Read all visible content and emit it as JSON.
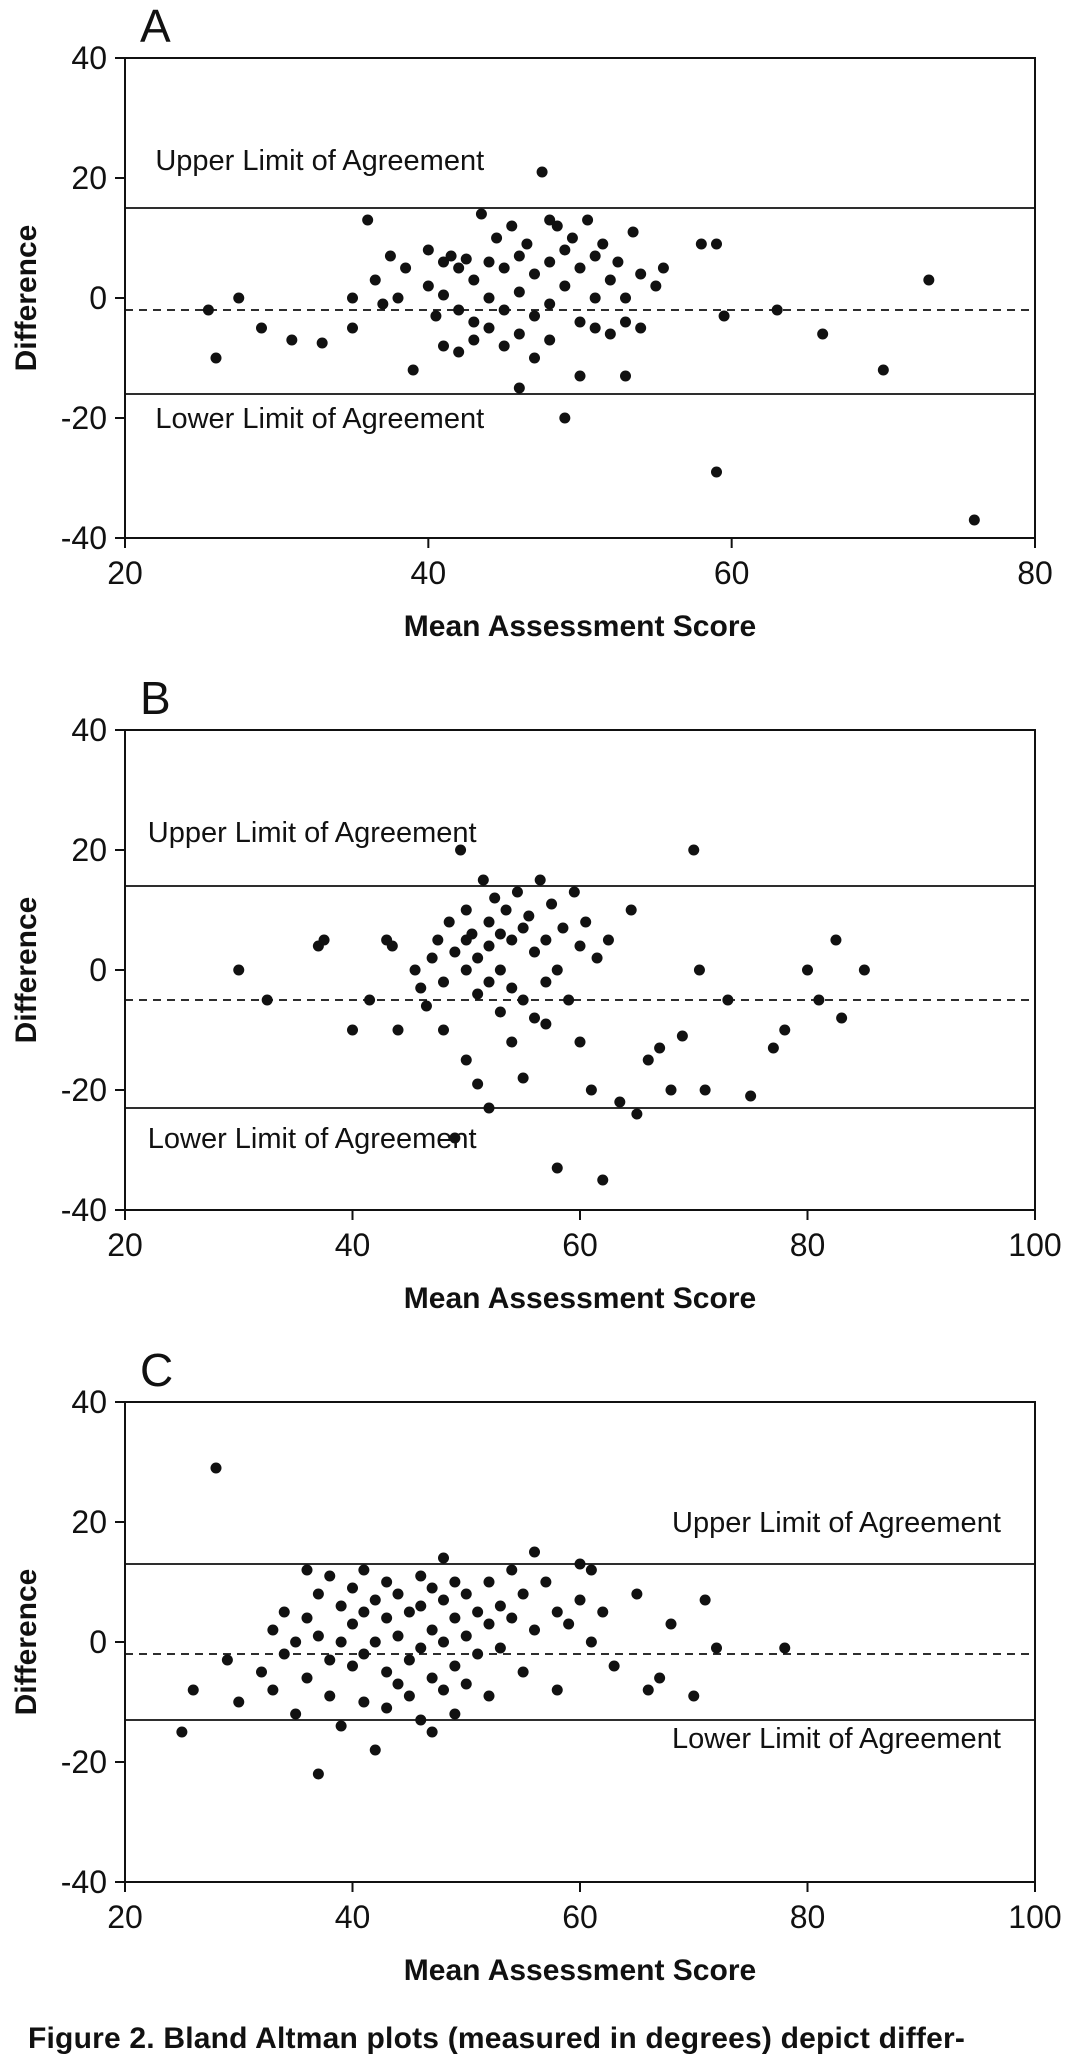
{
  "figure": {
    "caption": "Figure 2. Bland Altman plots (measured in degrees) depict differ-"
  },
  "chart_data": [
    {
      "type": "scatter",
      "panel": "A",
      "title": "",
      "xlabel": "Mean Assessment Score",
      "ylabel": "Difference",
      "xlim": [
        20,
        80
      ],
      "ylim": [
        -40,
        40
      ],
      "xticks": [
        20,
        40,
        60,
        80
      ],
      "yticks": [
        40,
        20,
        0,
        -20,
        -40
      ],
      "grid": false,
      "marker_color": "#111111",
      "lines": {
        "upper_limit": 15,
        "mean": -2,
        "lower_limit": -16
      },
      "annotations": [
        {
          "text": "Upper Limit of Agreement",
          "x": 22,
          "y": 23,
          "anchor": "start"
        },
        {
          "text": "Lower Limit of Agreement",
          "x": 22,
          "y": -20,
          "anchor": "start"
        }
      ],
      "points": [
        [
          26,
          -10
        ],
        [
          27.5,
          0
        ],
        [
          25.5,
          -2
        ],
        [
          29,
          -5
        ],
        [
          31,
          -7
        ],
        [
          33,
          -7.5
        ],
        [
          35,
          0
        ],
        [
          35,
          -5
        ],
        [
          36,
          13
        ],
        [
          36.5,
          3
        ],
        [
          37,
          -1
        ],
        [
          37.5,
          7
        ],
        [
          38,
          0
        ],
        [
          38.5,
          5
        ],
        [
          39,
          -12
        ],
        [
          40,
          8
        ],
        [
          40,
          2
        ],
        [
          40.5,
          -3
        ],
        [
          41,
          6
        ],
        [
          41,
          0.5
        ],
        [
          41,
          -8
        ],
        [
          41.5,
          7
        ],
        [
          42,
          5
        ],
        [
          42,
          -2
        ],
        [
          42,
          -9
        ],
        [
          42.5,
          6.5
        ],
        [
          43,
          3
        ],
        [
          43,
          -4
        ],
        [
          43,
          -7
        ],
        [
          43.5,
          14
        ],
        [
          44,
          6
        ],
        [
          44,
          0
        ],
        [
          44,
          -5
        ],
        [
          44.5,
          10
        ],
        [
          45,
          5
        ],
        [
          45,
          -2
        ],
        [
          45,
          -8
        ],
        [
          45.5,
          12
        ],
        [
          46,
          7
        ],
        [
          46,
          1
        ],
        [
          46,
          -6
        ],
        [
          46,
          -15
        ],
        [
          46.5,
          9
        ],
        [
          47,
          4
        ],
        [
          47,
          -3
        ],
        [
          47,
          -10
        ],
        [
          47.5,
          21
        ],
        [
          48,
          13
        ],
        [
          48,
          6
        ],
        [
          48,
          -1
        ],
        [
          48,
          -7
        ],
        [
          48.5,
          12
        ],
        [
          49,
          8
        ],
        [
          49,
          2
        ],
        [
          49,
          -20
        ],
        [
          49.5,
          10
        ],
        [
          50,
          5
        ],
        [
          50,
          -4
        ],
        [
          50,
          -13
        ],
        [
          50.5,
          13
        ],
        [
          51,
          7
        ],
        [
          51,
          0
        ],
        [
          51,
          -5
        ],
        [
          51.5,
          9
        ],
        [
          52,
          3
        ],
        [
          52,
          -6
        ],
        [
          52.5,
          6
        ],
        [
          53,
          0
        ],
        [
          53,
          -4
        ],
        [
          53,
          -13
        ],
        [
          53.5,
          11
        ],
        [
          54,
          4
        ],
        [
          54,
          -5
        ],
        [
          55,
          2
        ],
        [
          55.5,
          5
        ],
        [
          58,
          9
        ],
        [
          59,
          9
        ],
        [
          59.5,
          -3
        ],
        [
          59,
          -29
        ],
        [
          63,
          -2
        ],
        [
          66,
          -6
        ],
        [
          70,
          -12
        ],
        [
          73,
          3
        ],
        [
          76,
          -37
        ]
      ]
    },
    {
      "type": "scatter",
      "panel": "B",
      "title": "",
      "xlabel": "Mean Assessment Score",
      "ylabel": "Difference",
      "xlim": [
        20,
        100
      ],
      "ylim": [
        -40,
        40
      ],
      "xticks": [
        20,
        40,
        60,
        80,
        100
      ],
      "yticks": [
        40,
        20,
        0,
        -20,
        -40
      ],
      "grid": false,
      "marker_color": "#111111",
      "lines": {
        "upper_limit": 14,
        "mean": -5,
        "lower_limit": -23
      },
      "annotations": [
        {
          "text": "Upper Limit of Agreement",
          "x": 22,
          "y": 23,
          "anchor": "start"
        },
        {
          "text": "Lower Limit of Agreement",
          "x": 22,
          "y": -28,
          "anchor": "start"
        }
      ],
      "points": [
        [
          30,
          0
        ],
        [
          32.5,
          -5
        ],
        [
          37,
          4
        ],
        [
          37.5,
          5
        ],
        [
          40,
          -10
        ],
        [
          41.5,
          -5
        ],
        [
          43,
          5
        ],
        [
          43.5,
          4
        ],
        [
          44,
          -10
        ],
        [
          45.5,
          0
        ],
        [
          46,
          -3
        ],
        [
          46.5,
          -6
        ],
        [
          47,
          2
        ],
        [
          47.5,
          5
        ],
        [
          48,
          -2
        ],
        [
          48,
          -10
        ],
        [
          48.5,
          8
        ],
        [
          49,
          3
        ],
        [
          49,
          -28
        ],
        [
          49.5,
          20
        ],
        [
          50,
          10
        ],
        [
          50,
          5
        ],
        [
          50,
          0
        ],
        [
          50,
          -15
        ],
        [
          50.5,
          6
        ],
        [
          51,
          2
        ],
        [
          51,
          -4
        ],
        [
          51,
          -19
        ],
        [
          51.5,
          15
        ],
        [
          52,
          8
        ],
        [
          52,
          4
        ],
        [
          52,
          -2
        ],
        [
          52,
          -23
        ],
        [
          52.5,
          12
        ],
        [
          53,
          6
        ],
        [
          53,
          0
        ],
        [
          53,
          -7
        ],
        [
          53.5,
          10
        ],
        [
          54,
          5
        ],
        [
          54,
          -3
        ],
        [
          54,
          -12
        ],
        [
          54.5,
          13
        ],
        [
          55,
          7
        ],
        [
          55,
          -5
        ],
        [
          55,
          -18
        ],
        [
          55.5,
          9
        ],
        [
          56,
          3
        ],
        [
          56,
          -8
        ],
        [
          56.5,
          15
        ],
        [
          57,
          5
        ],
        [
          57,
          -2
        ],
        [
          57,
          -9
        ],
        [
          57.5,
          11
        ],
        [
          58,
          0
        ],
        [
          58,
          -33
        ],
        [
          58.5,
          7
        ],
        [
          59,
          -5
        ],
        [
          59.5,
          13
        ],
        [
          60,
          4
        ],
        [
          60,
          -12
        ],
        [
          60.5,
          8
        ],
        [
          61,
          -20
        ],
        [
          61.5,
          2
        ],
        [
          62,
          -35
        ],
        [
          62.5,
          5
        ],
        [
          63.5,
          -22
        ],
        [
          64.5,
          10
        ],
        [
          65,
          -24
        ],
        [
          66,
          -15
        ],
        [
          67,
          -13
        ],
        [
          68,
          -20
        ],
        [
          69,
          -11
        ],
        [
          70,
          20
        ],
        [
          70.5,
          0
        ],
        [
          71,
          -20
        ],
        [
          73,
          -5
        ],
        [
          75,
          -21
        ],
        [
          77,
          -13
        ],
        [
          78,
          -10
        ],
        [
          80,
          0
        ],
        [
          81,
          -5
        ],
        [
          82.5,
          5
        ],
        [
          83,
          -8
        ],
        [
          85,
          0
        ]
      ]
    },
    {
      "type": "scatter",
      "panel": "C",
      "title": "",
      "xlabel": "Mean Assessment Score",
      "ylabel": "Difference",
      "xlim": [
        20,
        100
      ],
      "ylim": [
        -40,
        40
      ],
      "xticks": [
        20,
        40,
        60,
        80,
        100
      ],
      "yticks": [
        40,
        20,
        0,
        -20,
        -40
      ],
      "grid": false,
      "marker_color": "#111111",
      "lines": {
        "upper_limit": 13,
        "mean": -2,
        "lower_limit": -13
      },
      "annotations": [
        {
          "text": "Upper Limit of Agreement",
          "x": 97,
          "y": 20,
          "anchor": "end"
        },
        {
          "text": "Lower Limit of Agreement",
          "x": 97,
          "y": -16,
          "anchor": "end"
        }
      ],
      "points": [
        [
          25,
          -15
        ],
        [
          26,
          -8
        ],
        [
          28,
          29
        ],
        [
          29,
          -3
        ],
        [
          30,
          -10
        ],
        [
          32,
          -5
        ],
        [
          33,
          2
        ],
        [
          33,
          -8
        ],
        [
          34,
          5
        ],
        [
          34,
          -2
        ],
        [
          35,
          0
        ],
        [
          35,
          -12
        ],
        [
          36,
          12
        ],
        [
          36,
          4
        ],
        [
          36,
          -6
        ],
        [
          37,
          -22
        ],
        [
          37,
          8
        ],
        [
          37,
          1
        ],
        [
          38,
          11
        ],
        [
          38,
          -3
        ],
        [
          38,
          -9
        ],
        [
          39,
          6
        ],
        [
          39,
          0
        ],
        [
          39,
          -14
        ],
        [
          40,
          9
        ],
        [
          40,
          3
        ],
        [
          40,
          -4
        ],
        [
          41,
          12
        ],
        [
          41,
          5
        ],
        [
          41,
          -2
        ],
        [
          41,
          -10
        ],
        [
          42,
          7
        ],
        [
          42,
          0
        ],
        [
          42,
          -18
        ],
        [
          43,
          10
        ],
        [
          43,
          4
        ],
        [
          43,
          -5
        ],
        [
          43,
          -11
        ],
        [
          44,
          8
        ],
        [
          44,
          1
        ],
        [
          44,
          -7
        ],
        [
          45,
          5
        ],
        [
          45,
          -3
        ],
        [
          45,
          -9
        ],
        [
          46,
          11
        ],
        [
          46,
          6
        ],
        [
          46,
          -1
        ],
        [
          46,
          -13
        ],
        [
          47,
          9
        ],
        [
          47,
          2
        ],
        [
          47,
          -6
        ],
        [
          47,
          -15
        ],
        [
          48,
          14
        ],
        [
          48,
          7
        ],
        [
          48,
          0
        ],
        [
          48,
          -8
        ],
        [
          49,
          10
        ],
        [
          49,
          4
        ],
        [
          49,
          -4
        ],
        [
          49,
          -12
        ],
        [
          50,
          8
        ],
        [
          50,
          1
        ],
        [
          50,
          -7
        ],
        [
          51,
          5
        ],
        [
          51,
          -2
        ],
        [
          52,
          10
        ],
        [
          52,
          3
        ],
        [
          52,
          -9
        ],
        [
          53,
          6
        ],
        [
          53,
          -1
        ],
        [
          54,
          12
        ],
        [
          54,
          4
        ],
        [
          55,
          8
        ],
        [
          55,
          -5
        ],
        [
          56,
          15
        ],
        [
          56,
          2
        ],
        [
          57,
          10
        ],
        [
          58,
          5
        ],
        [
          58,
          -8
        ],
        [
          59,
          3
        ],
        [
          60,
          13
        ],
        [
          60,
          7
        ],
        [
          61,
          12
        ],
        [
          61,
          0
        ],
        [
          62,
          5
        ],
        [
          63,
          -4
        ],
        [
          65,
          8
        ],
        [
          66,
          -8
        ],
        [
          67,
          -6
        ],
        [
          68,
          3
        ],
        [
          70,
          -9
        ],
        [
          71,
          7
        ],
        [
          72,
          -1
        ],
        [
          78,
          -1
        ]
      ]
    }
  ]
}
